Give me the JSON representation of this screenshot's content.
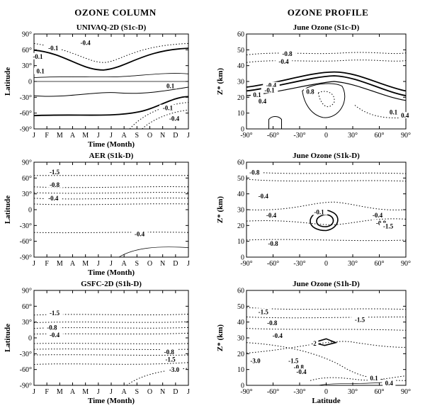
{
  "figure": {
    "column_headers": [
      "OZONE COLUMN",
      "OZONE PROFILE"
    ]
  },
  "chart_data": [
    {
      "type": "contour",
      "title": "UNIVAQ-2D (S1c-D)",
      "xlabel": "Time (Month)",
      "ylabel": "Latitude",
      "x_ticks": [
        "J",
        "F",
        "M",
        "A",
        "M",
        "J",
        "J",
        "A",
        "S",
        "O",
        "N",
        "D",
        "J"
      ],
      "y_ticks": [
        "90°",
        "60°",
        "30°",
        "0",
        "-30°",
        "-60°",
        "-90°"
      ],
      "xlim": [
        0,
        12
      ],
      "ylim": [
        -90,
        90
      ],
      "contour_labels": [
        {
          "text": "-0.4",
          "x": 4.0,
          "y": 72
        },
        {
          "text": "-0.1",
          "x": 1.5,
          "y": 62
        },
        {
          "text": "-0.1",
          "x": 0.3,
          "y": 46
        },
        {
          "text": "0.1",
          "x": 0.5,
          "y": 18
        },
        {
          "text": "0.1",
          "x": 10.6,
          "y": -10
        },
        {
          "text": "-0.1",
          "x": 10.4,
          "y": -52
        },
        {
          "text": "-0.4",
          "x": 10.9,
          "y": -72
        }
      ]
    },
    {
      "type": "contour",
      "title": "June Ozone (S1c-D)",
      "xlabel": "",
      "ylabel": "Z* (km)",
      "x_ticks": [
        "-90°",
        "-60°",
        "-30°",
        "0",
        "30°",
        "60°",
        "90°"
      ],
      "y_ticks": [
        "60",
        "50",
        "40",
        "30",
        "20",
        "10",
        "0"
      ],
      "xlim": [
        -90,
        90
      ],
      "ylim": [
        0,
        60
      ],
      "contour_labels": [
        {
          "text": "-0.8",
          "x": -44,
          "y": 47
        },
        {
          "text": "-0.4",
          "x": -48,
          "y": 42
        },
        {
          "text": "-0.4",
          "x": -62,
          "y": 27
        },
        {
          "text": "-0.1",
          "x": -64,
          "y": 24
        },
        {
          "text": "0.1",
          "x": -78,
          "y": 21
        },
        {
          "text": "0.4",
          "x": -72,
          "y": 17
        },
        {
          "text": "0.8",
          "x": -18,
          "y": 23
        },
        {
          "text": "0.1",
          "x": 76,
          "y": 10
        },
        {
          "text": "0.4",
          "x": 89,
          "y": 8
        }
      ]
    },
    {
      "type": "contour",
      "title": "AER (S1k-D)",
      "xlabel": "Time (Month)",
      "ylabel": "Latitude",
      "x_ticks": [
        "J",
        "F",
        "M",
        "A",
        "M",
        "J",
        "J",
        "A",
        "S",
        "O",
        "N",
        "D",
        "J"
      ],
      "y_ticks": [
        "90°",
        "60°",
        "30°",
        "0",
        "-30°",
        "-60°",
        "-90°"
      ],
      "xlim": [
        0,
        12
      ],
      "ylim": [
        -90,
        90
      ],
      "contour_labels": [
        {
          "text": "-1.5",
          "x": 1.6,
          "y": 70
        },
        {
          "text": "-0.8",
          "x": 1.6,
          "y": 46
        },
        {
          "text": "-0.4",
          "x": 1.5,
          "y": 20
        },
        {
          "text": "-0.4",
          "x": 8.2,
          "y": -48
        }
      ]
    },
    {
      "type": "contour",
      "title": "June Ozone (S1k-D)",
      "xlabel": "",
      "ylabel": "Z* (km)",
      "x_ticks": [
        "-90°",
        "-60°",
        "-30°",
        "0",
        "30°",
        "60°",
        "90°"
      ],
      "y_ticks": [
        "60",
        "50",
        "40",
        "30",
        "20",
        "10",
        "0"
      ],
      "xlim": [
        -90,
        90
      ],
      "ylim": [
        0,
        60
      ],
      "contour_labels": [
        {
          "text": "-0.8",
          "x": -81,
          "y": 53
        },
        {
          "text": "-0.4",
          "x": -71,
          "y": 38
        },
        {
          "text": "-0.4",
          "x": -62,
          "y": 26
        },
        {
          "text": "-0.1",
          "x": -8,
          "y": 28
        },
        {
          "text": "-0.4",
          "x": 58,
          "y": 26
        },
        {
          "text": "-0.8",
          "x": 62,
          "y": 21
        },
        {
          "text": "-1.5",
          "x": 70,
          "y": 19
        },
        {
          "text": "-0.8",
          "x": -60,
          "y": 8
        }
      ]
    },
    {
      "type": "contour",
      "title": "GSFC-2D (S1h-D)",
      "xlabel": "Time (Month)",
      "ylabel": "Latitude",
      "x_ticks": [
        "J",
        "F",
        "M",
        "A",
        "M",
        "J",
        "J",
        "A",
        "S",
        "O",
        "N",
        "D",
        "J"
      ],
      "y_ticks": [
        "90°",
        "60°",
        "30°",
        "0",
        "-30°",
        "-60°",
        "-90°"
      ],
      "xlim": [
        0,
        12
      ],
      "ylim": [
        -90,
        90
      ],
      "contour_labels": [
        {
          "text": "-1.5",
          "x": 1.6,
          "y": 46
        },
        {
          "text": "-0.8",
          "x": 1.4,
          "y": 18
        },
        {
          "text": "-0.4",
          "x": 1.6,
          "y": 4
        },
        {
          "text": "-0.8",
          "x": 10.5,
          "y": -28
        },
        {
          "text": "-1.5",
          "x": 10.6,
          "y": -42
        },
        {
          "text": "-3.0",
          "x": 10.9,
          "y": -62
        }
      ]
    },
    {
      "type": "contour",
      "title": "June Ozone (S1h-D)",
      "xlabel": "Latitude",
      "ylabel": "Z* (km)",
      "x_ticks": [
        "-90°",
        "-60°",
        "-30°",
        "0",
        "30°",
        "60°",
        "90°"
      ],
      "y_ticks": [
        "60",
        "50",
        "40",
        "30",
        "20",
        "10",
        "0"
      ],
      "xlim": [
        -90,
        90
      ],
      "ylim": [
        0,
        60
      ],
      "contour_labels": [
        {
          "text": "-1.5",
          "x": -71,
          "y": 46
        },
        {
          "text": "-1.5",
          "x": 38,
          "y": 41
        },
        {
          "text": "-0.8",
          "x": -61,
          "y": 39
        },
        {
          "text": "-0.4",
          "x": -55,
          "y": 31
        },
        {
          "text": "-2",
          "x": -14,
          "y": 26
        },
        {
          "text": "-3.0",
          "x": -80,
          "y": 15
        },
        {
          "text": "-1.5",
          "x": -37,
          "y": 15
        },
        {
          "text": "-0.8",
          "x": -31,
          "y": 11
        },
        {
          "text": "-0.4",
          "x": -28,
          "y": 8
        },
        {
          "text": "0.1",
          "x": 54,
          "y": 4
        },
        {
          "text": "0.4",
          "x": 71,
          "y": 1
        }
      ]
    }
  ]
}
